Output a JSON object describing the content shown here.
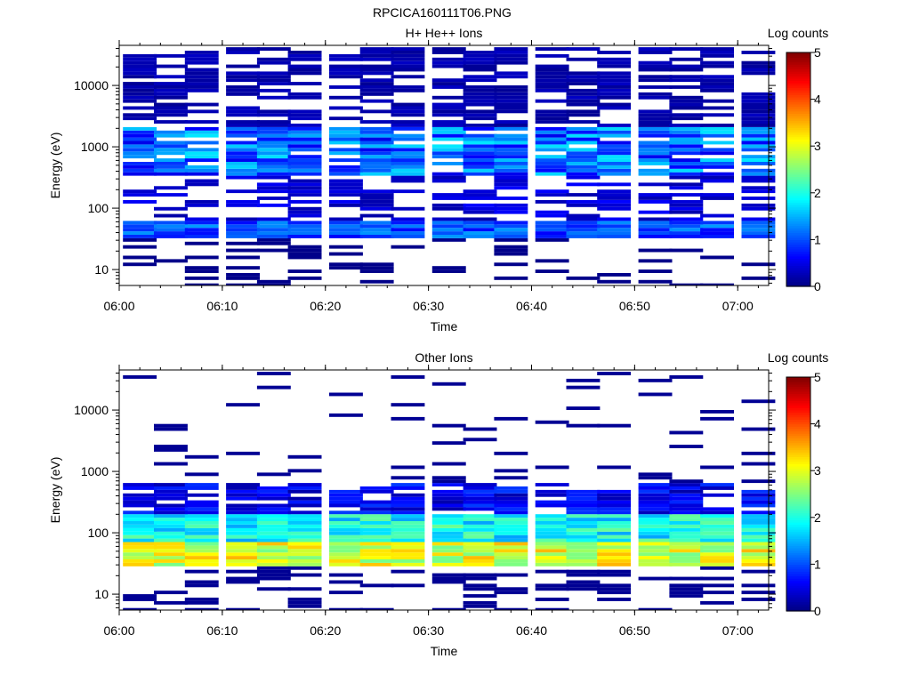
{
  "figure_title": "RPCICA160111T06.PNG",
  "chart_data": [
    {
      "type": "heatmap",
      "title": "H+ He++ Ions",
      "xlabel": "Time",
      "ylabel": "Energy (eV)",
      "x_ticks": [
        "06:00",
        "06:10",
        "06:20",
        "06:30",
        "06:40",
        "06:50",
        "07:00"
      ],
      "y_ticks": [
        "10",
        "100",
        "1000",
        "10000"
      ],
      "y_scale": "log",
      "ylim": [
        5.5,
        45000
      ],
      "xlim": [
        "06:00",
        "07:03"
      ],
      "colorbar": {
        "label": "Log counts",
        "ticks": [
          "0",
          "1",
          "2",
          "3",
          "4",
          "5"
        ],
        "range": [
          0,
          5
        ]
      },
      "time_bins": [
        "06:02",
        "06:05",
        "06:08",
        "06:12",
        "06:15",
        "06:18",
        "06:22",
        "06:25",
        "06:28",
        "06:32",
        "06:35",
        "06:38",
        "06:42",
        "06:45",
        "06:48",
        "06:52",
        "06:55",
        "06:58",
        "07:02"
      ],
      "profile": {
        "low_energy_band": [
          30,
          60
        ],
        "low_energy_level": 1.2,
        "mid_energy_peak": [
          300,
          2000
        ],
        "mid_energy_level": 1.8,
        "high_energy_level": 0.4
      }
    },
    {
      "type": "heatmap",
      "title": "Other Ions",
      "xlabel": "Time",
      "ylabel": "Energy (eV)",
      "x_ticks": [
        "06:00",
        "06:10",
        "06:20",
        "06:30",
        "06:40",
        "06:50",
        "07:00"
      ],
      "y_ticks": [
        "10",
        "100",
        "1000",
        "10000"
      ],
      "y_scale": "log",
      "ylim": [
        5.5,
        45000
      ],
      "xlim": [
        "06:00",
        "07:03"
      ],
      "colorbar": {
        "label": "Log counts",
        "ticks": [
          "0",
          "1",
          "2",
          "3",
          "4",
          "5"
        ],
        "range": [
          0,
          5
        ]
      },
      "time_bins": [
        "06:02",
        "06:05",
        "06:08",
        "06:12",
        "06:15",
        "06:18",
        "06:22",
        "06:25",
        "06:28",
        "06:32",
        "06:35",
        "06:38",
        "06:42",
        "06:45",
        "06:48",
        "06:52",
        "06:55",
        "06:58",
        "07:02"
      ],
      "profile": {
        "peak_band": [
          30,
          60
        ],
        "peak_level": 3.1,
        "secondary_band": [
          60,
          200
        ],
        "secondary_level": 2.0,
        "upper_band": [
          200,
          600
        ],
        "upper_level": 0.8,
        "sparse_high_level": 0.2
      }
    }
  ]
}
